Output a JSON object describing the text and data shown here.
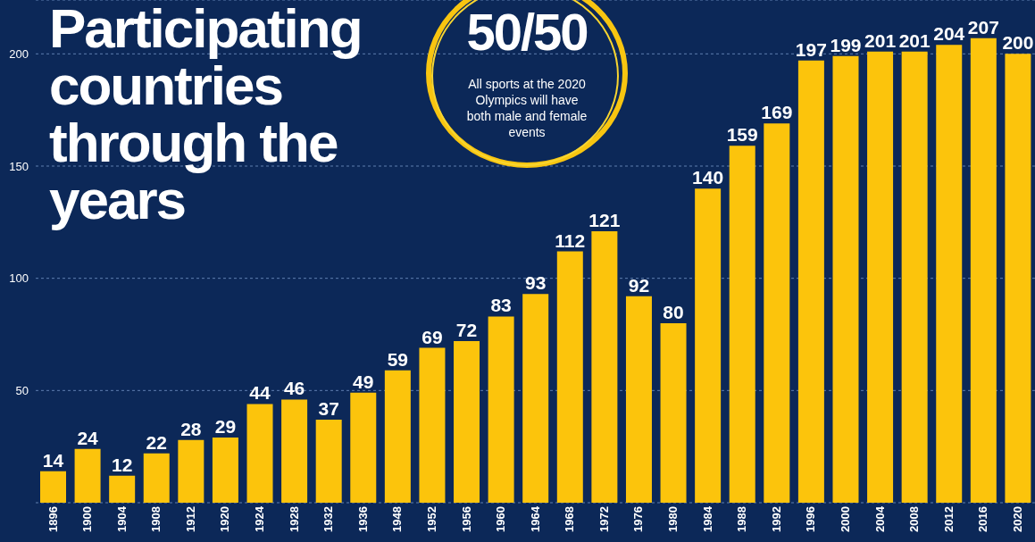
{
  "chart_data": {
    "type": "bar",
    "title": "Participating countries through the years",
    "categories": [
      "1896",
      "1900",
      "1904",
      "1908",
      "1912",
      "1920",
      "1924",
      "1928",
      "1932",
      "1936",
      "1948",
      "1952",
      "1956",
      "1960",
      "1964",
      "1968",
      "1972",
      "1976",
      "1980",
      "1984",
      "1988",
      "1992",
      "1996",
      "2000",
      "2004",
      "2008",
      "2012",
      "2016",
      "2020"
    ],
    "values": [
      14,
      24,
      12,
      22,
      28,
      29,
      44,
      46,
      37,
      49,
      59,
      69,
      72,
      83,
      93,
      112,
      121,
      92,
      80,
      140,
      159,
      169,
      197,
      199,
      201,
      201,
      204,
      207,
      200
    ],
    "color": "#fcc40c",
    "ylim": [
      0,
      224
    ],
    "yticks": [
      50,
      100,
      150,
      200
    ],
    "grid": "y",
    "data_labels": true,
    "legend": false,
    "annotations": [
      "50/50",
      "All sports at the 2020 Olympics will have both male and female events"
    ]
  }
}
